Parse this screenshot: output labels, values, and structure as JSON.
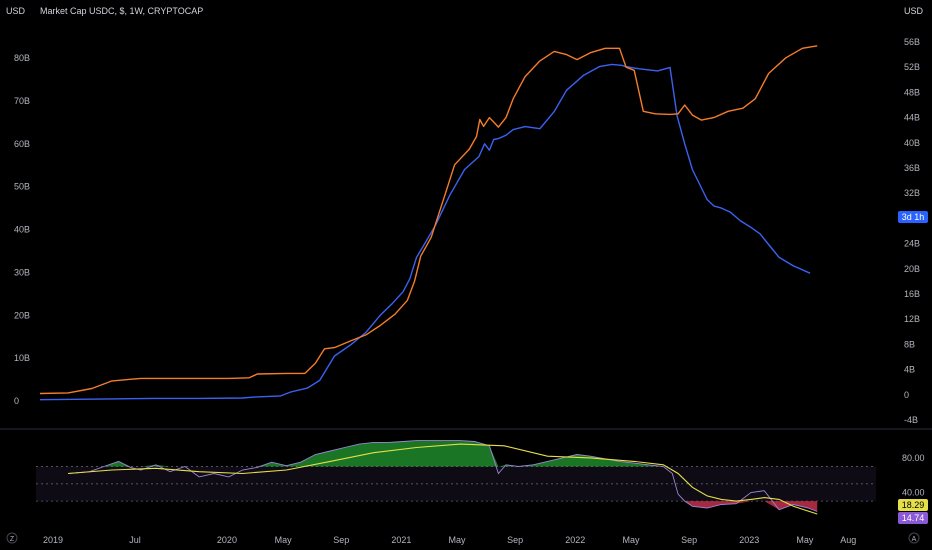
{
  "header": {
    "left_currency": "USD",
    "right_currency": "USD",
    "title": "Market Cap USDC, $, 1W, CRYPTOCAP"
  },
  "badges": {
    "countdown": "3d 1h",
    "rsi_value": "18.29",
    "rsi_ma_value": "14.74"
  },
  "corner_icons": {
    "left": "Z",
    "right": "A"
  },
  "colors": {
    "orange": "#f57c2a",
    "blue": "#3a62f2",
    "rsi_line": "#9c86d6",
    "rsi_ma": "#e5e04a",
    "overbought_fill": "#1e8a2a",
    "oversold_fill": "#c2304a",
    "band": "#2a1f3d"
  },
  "chart_data": [
    {
      "type": "line",
      "title": "Market Cap USDC, $, 1W, CRYPTOCAP",
      "x_ticks": [
        "2019",
        "Jul",
        "2020",
        "May",
        "Sep",
        "2021",
        "May",
        "Sep",
        "2022",
        "May",
        "Sep",
        "2023",
        "May",
        "Aug"
      ],
      "left_axis": {
        "label": "USD",
        "ticks": [
          "0",
          "10B",
          "20B",
          "30B",
          "40B",
          "50B",
          "60B",
          "70B",
          "80B"
        ],
        "ylim": [
          0,
          80
        ]
      },
      "right_axis": {
        "label": "USD",
        "ticks": [
          "-4B",
          "0",
          "4B",
          "8B",
          "12B",
          "16B",
          "20B",
          "24B",
          "28B",
          "32B",
          "36B",
          "40B",
          "44B",
          "48B",
          "52B",
          "56B"
        ],
        "ylim": [
          -4,
          56
        ]
      },
      "series": [
        {
          "axis": "left",
          "x": [
            "2019-01-01",
            "2019-03-15",
            "2019-06-01",
            "2019-09-01",
            "2019-12-01",
            "2020-03-01",
            "2020-03-25",
            "2020-05-20",
            "2020-06-10",
            "2020-07-15",
            "2020-08-10",
            "2020-09-10",
            "2020-10-15",
            "2020-11-15",
            "2020-12-15",
            "2021-01-10",
            "2021-02-01",
            "2021-02-15",
            "2021-03-01",
            "2021-03-20",
            "2021-04-10",
            "2021-05-10",
            "2021-06-10",
            "2021-07-10",
            "2021-07-22",
            "2021-08-01",
            "2021-08-10",
            "2021-08-20",
            "2021-09-05",
            "2021-09-20",
            "2021-10-15",
            "2021-11-15",
            "2021-12-15",
            "2022-01-10",
            "2022-02-15",
            "2022-03-20",
            "2022-04-15",
            "2022-05-05",
            "2022-05-15",
            "2022-06-10",
            "2022-07-20",
            "2022-08-15",
            "2022-08-30",
            "2022-09-15",
            "2022-10-01",
            "2022-11-01",
            "2022-11-15",
            "2022-12-01",
            "2022-12-20",
            "2023-01-10",
            "2023-02-01",
            "2023-02-20",
            "2023-03-10",
            "2023-04-01",
            "2023-05-01",
            "2023-06-05"
          ],
          "y": [
            0.3,
            0.4,
            0.5,
            0.6,
            0.6,
            0.7,
            0.9,
            1.2,
            2.1,
            3.0,
            4.8,
            10.5,
            13.2,
            16.0,
            20.0,
            22.8,
            25.5,
            28.5,
            33.5,
            37.0,
            41.0,
            48.0,
            54.0,
            57.0,
            60.0,
            58.5,
            61.0,
            61.2,
            62.0,
            63.3,
            64.0,
            63.5,
            67.5,
            72.5,
            76.0,
            78.0,
            78.5,
            78.3,
            78.0,
            77.5,
            77.0,
            77.8,
            66.5,
            60.0,
            54.0,
            47.0,
            45.5,
            45.0,
            44.0,
            42.0,
            40.5,
            39.0,
            36.5,
            33.5,
            31.5,
            29.8
          ]
        },
        {
          "axis": "right",
          "x": [
            "2019-01-01",
            "2019-03-01",
            "2019-04-20",
            "2019-06-01",
            "2019-08-01",
            "2019-10-01",
            "2019-12-01",
            "2020-02-01",
            "2020-03-15",
            "2020-04-01",
            "2020-06-01",
            "2020-07-10",
            "2020-08-01",
            "2020-08-20",
            "2020-09-10",
            "2020-10-15",
            "2020-11-15",
            "2020-12-15",
            "2021-01-15",
            "2021-02-10",
            "2021-02-25",
            "2021-03-10",
            "2021-04-01",
            "2021-05-01",
            "2021-05-20",
            "2021-06-20",
            "2021-07-05",
            "2021-07-12",
            "2021-07-20",
            "2021-08-01",
            "2021-08-10",
            "2021-08-20",
            "2021-09-05",
            "2021-09-20",
            "2021-10-15",
            "2021-11-15",
            "2021-12-15",
            "2022-01-10",
            "2022-02-01",
            "2022-03-01",
            "2022-04-01",
            "2022-05-01",
            "2022-05-15",
            "2022-06-01",
            "2022-06-20",
            "2022-07-15",
            "2022-08-15",
            "2022-09-01",
            "2022-09-15",
            "2022-10-01",
            "2022-10-20",
            "2022-11-15",
            "2022-12-15",
            "2023-01-15",
            "2023-02-10",
            "2023-03-10",
            "2023-04-15",
            "2023-05-20",
            "2023-06-20"
          ],
          "y": [
            0.2,
            0.3,
            1.0,
            2.2,
            2.6,
            2.6,
            2.6,
            2.6,
            2.7,
            3.3,
            3.4,
            3.4,
            5.0,
            7.3,
            7.5,
            8.6,
            9.5,
            11.0,
            12.8,
            15.0,
            18.0,
            22.0,
            25.0,
            32.0,
            36.5,
            39.0,
            41.0,
            43.7,
            42.6,
            44.0,
            43.3,
            42.5,
            44.0,
            47.0,
            50.5,
            53.0,
            54.5,
            54.0,
            53.2,
            54.3,
            55.0,
            55.0,
            52.0,
            51.5,
            45.0,
            44.6,
            44.5,
            44.6,
            46.0,
            44.4,
            43.6,
            44.0,
            45.0,
            45.5,
            47.0,
            51.0,
            53.5,
            55.0,
            55.4
          ]
        }
      ]
    },
    {
      "type": "line",
      "title": "",
      "y_ticks": [
        "80.00",
        "40.00"
      ],
      "ylim": [
        0,
        110
      ],
      "guides": {
        "upper": 70,
        "middle": 50,
        "lower": 30
      },
      "series": [
        {
          "x": [
            "2019-03-01",
            "2019-04-15",
            "2019-05-15",
            "2019-06-15",
            "2019-07-10",
            "2019-08-01",
            "2019-09-01",
            "2019-10-01",
            "2019-11-01",
            "2019-12-01",
            "2020-01-01",
            "2020-02-01",
            "2020-03-01",
            "2020-04-01",
            "2020-05-01",
            "2020-06-01",
            "2020-07-01",
            "2020-08-01",
            "2020-09-01",
            "2020-10-01",
            "2020-11-01",
            "2020-12-01",
            "2021-01-01",
            "2021-02-01",
            "2021-03-01",
            "2021-04-01",
            "2021-05-01",
            "2021-06-01",
            "2021-07-01",
            "2021-08-01",
            "2021-08-20",
            "2021-09-05",
            "2021-10-01",
            "2021-11-01",
            "2021-12-01",
            "2022-01-01",
            "2022-02-01",
            "2022-03-01",
            "2022-04-01",
            "2022-05-01",
            "2022-06-01",
            "2022-07-01",
            "2022-08-01",
            "2022-08-20",
            "2022-09-01",
            "2022-09-15",
            "2022-10-01",
            "2022-11-01",
            "2022-12-01",
            "2023-01-01",
            "2023-02-01",
            "2023-03-01",
            "2023-04-01",
            "2023-05-01",
            "2023-06-01",
            "2023-06-20"
          ],
          "y": [
            62,
            64,
            70,
            76,
            69,
            66,
            72,
            64,
            70,
            58,
            62,
            58,
            66,
            69,
            75,
            71,
            75,
            84,
            88,
            92,
            96,
            98,
            98,
            99,
            100,
            100,
            100,
            100,
            99,
            94,
            62,
            72,
            70,
            72,
            76,
            80,
            84,
            82,
            79,
            76,
            74,
            72,
            70,
            62,
            38,
            30,
            24,
            22,
            26,
            27,
            40,
            42,
            20,
            26,
            22,
            18
          ]
        },
        {
          "x": [
            "2019-03-01",
            "2019-06-01",
            "2019-09-01",
            "2019-12-01",
            "2020-03-01",
            "2020-06-01",
            "2020-09-01",
            "2020-12-01",
            "2021-03-01",
            "2021-06-01",
            "2021-09-01",
            "2021-12-01",
            "2022-03-01",
            "2022-06-01",
            "2022-08-01",
            "2022-09-01",
            "2022-10-01",
            "2022-11-01",
            "2022-12-01",
            "2023-01-01",
            "2023-02-01",
            "2023-03-01",
            "2023-04-01",
            "2023-05-01",
            "2023-06-20"
          ],
          "y": [
            62,
            66,
            68,
            64,
            62,
            66,
            76,
            86,
            92,
            96,
            94,
            82,
            80,
            76,
            72,
            62,
            46,
            36,
            32,
            30,
            32,
            34,
            32,
            24,
            15
          ]
        }
      ]
    }
  ]
}
